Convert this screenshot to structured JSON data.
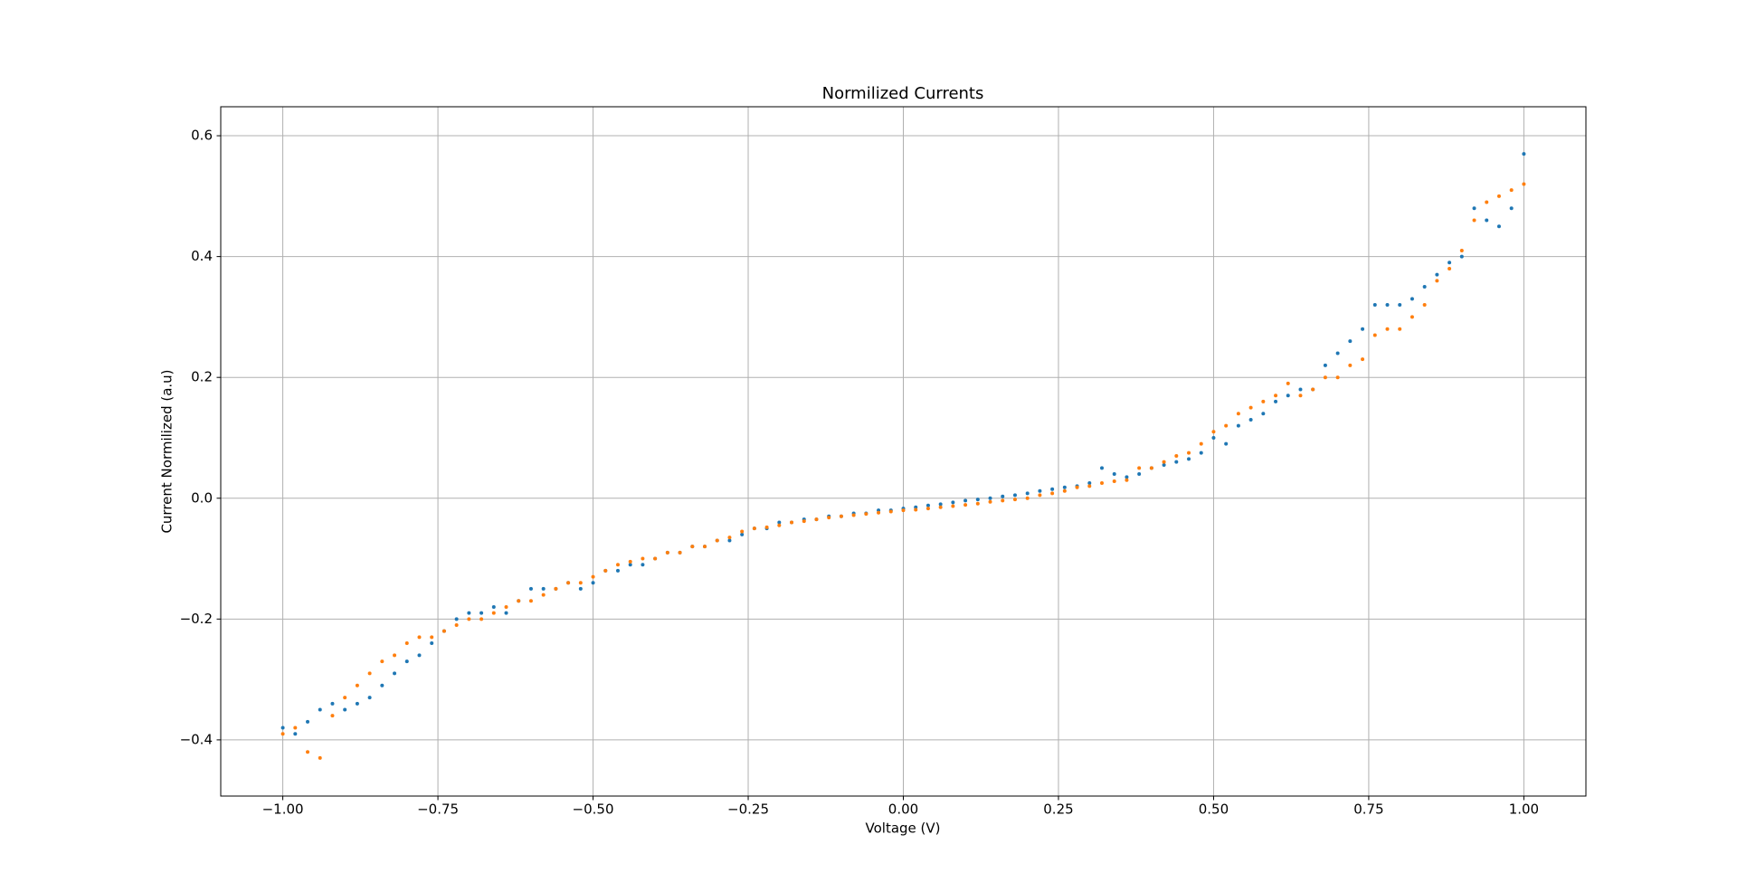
{
  "chart_data": {
    "type": "scatter",
    "title": "Normilized Currents",
    "x_label": "Voltage (V)",
    "y_label": "Current Normilized (a.u)",
    "x": [
      -1.0,
      -0.98,
      -0.96,
      -0.94,
      -0.92,
      -0.9,
      -0.88,
      -0.86,
      -0.84,
      -0.82,
      -0.8,
      -0.78,
      -0.76,
      -0.74,
      -0.72,
      -0.7,
      -0.68,
      -0.66,
      -0.64,
      -0.62,
      -0.6,
      -0.58,
      -0.56,
      -0.54,
      -0.52,
      -0.5,
      -0.48,
      -0.46,
      -0.44,
      -0.42,
      -0.4,
      -0.38,
      -0.36,
      -0.34,
      -0.32,
      -0.3,
      -0.28,
      -0.26,
      -0.24,
      -0.22,
      -0.2,
      -0.18,
      -0.16,
      -0.14,
      -0.12,
      -0.1,
      -0.08,
      -0.06,
      -0.04,
      -0.02,
      0.0,
      0.02,
      0.04,
      0.06,
      0.08,
      0.1,
      0.12,
      0.14,
      0.16,
      0.18,
      0.2,
      0.22,
      0.24,
      0.26,
      0.28,
      0.3,
      0.32,
      0.34,
      0.36,
      0.38,
      0.4,
      0.42,
      0.44,
      0.46,
      0.48,
      0.5,
      0.52,
      0.54,
      0.56,
      0.58,
      0.6,
      0.62,
      0.64,
      0.66,
      0.68,
      0.7,
      0.72,
      0.74,
      0.76,
      0.78,
      0.8,
      0.82,
      0.84,
      0.86,
      0.88,
      0.9,
      0.92,
      0.94,
      0.96,
      0.98,
      1.0
    ],
    "series": [
      {
        "color": "#1f77b4",
        "values": [
          -0.38,
          -0.39,
          -0.37,
          -0.35,
          -0.34,
          -0.35,
          -0.34,
          -0.33,
          -0.31,
          -0.29,
          -0.27,
          -0.26,
          -0.24,
          -0.22,
          -0.2,
          -0.19,
          -0.19,
          -0.18,
          -0.19,
          -0.17,
          -0.15,
          -0.15,
          -0.15,
          -0.14,
          -0.15,
          -0.14,
          -0.12,
          -0.12,
          -0.11,
          -0.11,
          -0.1,
          -0.09,
          -0.09,
          -0.08,
          -0.08,
          -0.07,
          -0.07,
          -0.06,
          -0.05,
          -0.05,
          -0.04,
          -0.04,
          -0.035,
          -0.035,
          -0.03,
          -0.03,
          -0.025,
          -0.025,
          -0.02,
          -0.02,
          -0.017,
          -0.015,
          -0.012,
          -0.01,
          -0.007,
          -0.004,
          -0.002,
          0.0,
          0.003,
          0.005,
          0.008,
          0.012,
          0.015,
          0.018,
          0.02,
          0.025,
          0.05,
          0.04,
          0.035,
          0.04,
          0.05,
          0.055,
          0.06,
          0.065,
          0.075,
          0.1,
          0.09,
          0.12,
          0.13,
          0.14,
          0.16,
          0.17,
          0.18,
          0.18,
          0.22,
          0.24,
          0.26,
          0.28,
          0.32,
          0.32,
          0.32,
          0.33,
          0.35,
          0.37,
          0.39,
          0.4,
          0.48,
          0.46,
          0.45,
          0.48,
          0.57
        ]
      },
      {
        "color": "#ff7f0e",
        "values": [
          -0.39,
          -0.38,
          -0.42,
          -0.43,
          -0.36,
          -0.33,
          -0.31,
          -0.29,
          -0.27,
          -0.26,
          -0.24,
          -0.23,
          -0.23,
          -0.22,
          -0.21,
          -0.2,
          -0.2,
          -0.19,
          -0.18,
          -0.17,
          -0.17,
          -0.16,
          -0.15,
          -0.14,
          -0.14,
          -0.13,
          -0.12,
          -0.11,
          -0.105,
          -0.1,
          -0.1,
          -0.09,
          -0.09,
          -0.08,
          -0.08,
          -0.07,
          -0.065,
          -0.055,
          -0.05,
          -0.048,
          -0.045,
          -0.04,
          -0.038,
          -0.035,
          -0.032,
          -0.03,
          -0.028,
          -0.026,
          -0.024,
          -0.022,
          -0.02,
          -0.019,
          -0.017,
          -0.015,
          -0.013,
          -0.011,
          -0.009,
          -0.006,
          -0.004,
          -0.002,
          0.0,
          0.005,
          0.008,
          0.012,
          0.018,
          0.02,
          0.025,
          0.028,
          0.03,
          0.05,
          0.05,
          0.06,
          0.07,
          0.075,
          0.09,
          0.11,
          0.12,
          0.14,
          0.15,
          0.16,
          0.17,
          0.19,
          0.17,
          0.18,
          0.2,
          0.2,
          0.22,
          0.23,
          0.27,
          0.28,
          0.28,
          0.3,
          0.32,
          0.36,
          0.38,
          0.41,
          0.46,
          0.49,
          0.5,
          0.51,
          0.52
        ]
      }
    ],
    "xlim": [
      -1.1,
      1.1
    ],
    "ylim": [
      -0.493,
      0.648
    ],
    "xticks": [
      {
        "value": -1.0,
        "label": "−1.00"
      },
      {
        "value": -0.75,
        "label": "−0.75"
      },
      {
        "value": -0.5,
        "label": "−0.50"
      },
      {
        "value": -0.25,
        "label": "−0.25"
      },
      {
        "value": 0,
        "label": "0.00"
      },
      0.25,
      {
        "value": 0.5,
        "label": "0.50"
      },
      0.75,
      {
        "value": 1.0,
        "label": "1.00"
      }
    ],
    "yticks": [
      {
        "value": -0.4,
        "label": "−0.4"
      },
      {
        "value": -0.2,
        "label": "−0.2"
      },
      {
        "value": 0,
        "label": "0.0"
      },
      0.2,
      0.4,
      0.6
    ],
    "grid": true
  }
}
